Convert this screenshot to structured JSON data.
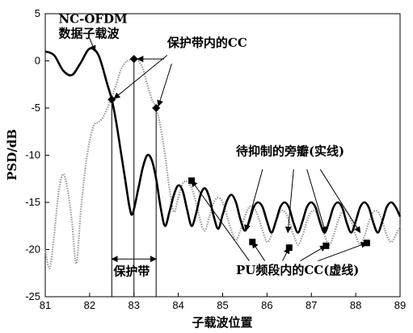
{
  "chart_data": {
    "type": "line",
    "title": "",
    "xlabel": "子载波位置",
    "ylabel": "PSD/dB",
    "xlim": [
      81,
      89
    ],
    "ylim": [
      -25,
      5
    ],
    "xticks": [
      81,
      82,
      83,
      84,
      85,
      86,
      87,
      88,
      89
    ],
    "yticks": [
      5,
      0,
      -5,
      -10,
      -15,
      -20,
      -25
    ],
    "grid": false,
    "series": [
      {
        "style": "solid-black-thick",
        "x": [
          81.0,
          81.2,
          81.4,
          81.6,
          81.8,
          82.0,
          82.2,
          82.4,
          82.5,
          82.6,
          82.7,
          82.8,
          82.9,
          82.97,
          83.1,
          83.2,
          83.3,
          83.4,
          83.5,
          83.6,
          83.7,
          83.8,
          83.9,
          84.0,
          84.1,
          84.2,
          84.3,
          84.4,
          84.5,
          84.6,
          84.7,
          84.8,
          84.9,
          85.0,
          85.1,
          85.2,
          85.3,
          85.4,
          85.5,
          85.6,
          85.7,
          85.8,
          85.9,
          86.0,
          86.1,
          86.2,
          86.3,
          86.4,
          86.5,
          86.6,
          86.7,
          86.8,
          86.9,
          87.0,
          87.1,
          87.2,
          87.3,
          87.4,
          87.5,
          87.6,
          87.7,
          87.8,
          87.9,
          88.0,
          88.1,
          88.2,
          88.3,
          88.4,
          88.5,
          88.6,
          88.7,
          88.8,
          88.9,
          89.0
        ],
        "y": [
          1.0,
          0.6,
          -1.0,
          -1.5,
          -0.2,
          1.3,
          0.6,
          -2.5,
          -4.1,
          -6.5,
          -9.5,
          -12.5,
          -15.5,
          -16.2,
          -13.5,
          -11.3,
          -10.0,
          -10.5,
          -12.5,
          -15.5,
          -17.5,
          -16.0,
          -14.2,
          -13.2,
          -13.8,
          -15.8,
          -17.5,
          -16.2,
          -14.2,
          -13.5,
          -14.5,
          -16.5,
          -17.8,
          -16.3,
          -14.8,
          -14.2,
          -15.0,
          -16.8,
          -18.0,
          -17.0,
          -15.5,
          -15.0,
          -15.5,
          -17.0,
          -18.2,
          -17.0,
          -15.5,
          -15.0,
          -15.6,
          -17.2,
          -18.2,
          -17.0,
          -15.5,
          -15.0,
          -15.6,
          -17.2,
          -18.2,
          -17.0,
          -15.5,
          -15.0,
          -15.6,
          -17.2,
          -18.2,
          -17.0,
          -15.5,
          -15.0,
          -15.6,
          -17.2,
          -18.2,
          -17.0,
          -15.5,
          -15.0,
          -15.5,
          -16.5
        ]
      },
      {
        "style": "dotted-gray",
        "x": [
          81.0,
          81.1,
          81.2,
          81.3,
          81.4,
          81.5,
          81.6,
          81.7,
          81.8,
          81.9,
          82.0,
          82.1,
          82.2,
          82.3,
          82.4,
          82.5,
          82.6,
          82.7,
          82.8,
          82.9,
          83.0,
          83.1,
          83.2,
          83.3,
          83.4,
          83.5,
          83.6,
          83.7,
          83.8,
          83.9,
          84.0,
          84.1,
          84.2,
          84.3,
          84.4,
          84.5,
          84.6,
          84.7,
          84.8,
          84.9,
          85.0,
          85.1,
          85.2,
          85.3,
          85.4,
          85.5,
          85.6,
          85.7,
          85.8,
          85.9,
          86.0,
          86.1,
          86.2,
          86.3,
          86.4,
          86.5,
          86.6,
          86.7,
          86.8,
          86.9,
          87.0,
          87.1,
          87.2,
          87.3,
          87.4,
          87.5,
          87.6,
          87.7,
          87.8,
          87.9,
          88.0,
          88.1,
          88.2,
          88.3,
          88.4,
          88.5,
          88.6,
          88.7,
          88.8,
          88.9,
          89.0
        ],
        "y": [
          -20.0,
          -22.0,
          -18.5,
          -14.0,
          -12.0,
          -13.5,
          -17.0,
          -21.5,
          -16.0,
          -11.5,
          -8.5,
          -6.8,
          -6.5,
          -6.0,
          -5.0,
          -3.8,
          -2.5,
          -1.0,
          -0.2,
          0.1,
          0.2,
          0.0,
          -0.8,
          -2.5,
          -4.0,
          -5.0,
          -7.0,
          -10.0,
          -13.5,
          -16.0,
          -14.5,
          -13.0,
          -12.8,
          -13.5,
          -15.0,
          -17.0,
          -18.0,
          -16.5,
          -15.0,
          -14.5,
          -15.0,
          -16.5,
          -18.0,
          -19.0,
          -18.0,
          -16.5,
          -15.5,
          -15.5,
          -16.5,
          -18.0,
          -19.2,
          -18.5,
          -17.0,
          -16.0,
          -16.0,
          -17.0,
          -18.5,
          -19.5,
          -18.5,
          -17.0,
          -16.0,
          -16.0,
          -17.0,
          -18.5,
          -19.5,
          -18.5,
          -17.0,
          -16.0,
          -16.0,
          -17.0,
          -18.5,
          -19.5,
          -18.5,
          -17.0,
          -16.0,
          -16.0,
          -17.0,
          -18.5,
          -19.2,
          -18.5,
          -17.5
        ]
      }
    ],
    "markers": [
      {
        "shape": "diamond",
        "x": 82.5,
        "y": -4.1
      },
      {
        "shape": "diamond",
        "x": 83.0,
        "y": 0.2
      },
      {
        "shape": "diamond",
        "x": 83.5,
        "y": -5.0
      },
      {
        "shape": "square",
        "x": 84.3,
        "y": -12.7
      },
      {
        "shape": "square",
        "x": 85.67,
        "y": -19.2
      },
      {
        "shape": "square",
        "x": 86.5,
        "y": -19.8
      },
      {
        "shape": "square",
        "x": 87.33,
        "y": -19.6
      },
      {
        "shape": "square",
        "x": 88.25,
        "y": -19.3
      }
    ],
    "vlines": [
      {
        "x": 82.5,
        "y_top": -4.1
      },
      {
        "x": 83.0,
        "y_top": 0.2
      },
      {
        "x": 83.5,
        "y_top": -5.0
      }
    ],
    "guard_band": {
      "x1": 82.5,
      "x2": 83.5,
      "y_arrow": -21.0,
      "label": "保护带",
      "label_x": 82.5,
      "label_y": -22.3
    },
    "annotations": [
      {
        "lines": [
          "NC-OFDM",
          "数据子载波"
        ],
        "text_pos": [
          81.3,
          4.0
        ],
        "arrows": [
          {
            "from": [
              82.0,
              2.4
            ],
            "to": [
              82.12,
              1.0
            ]
          }
        ]
      },
      {
        "lines": [
          "保护带内的CC"
        ],
        "text_pos": [
          83.75,
          1.5
        ],
        "arrows": [
          {
            "from": [
              83.68,
              0.2
            ],
            "to": [
              83.08,
              0.2
            ]
          },
          {
            "from": [
              83.75,
              0.6
            ],
            "to": [
              82.55,
              -4.0
            ]
          },
          {
            "from": [
              83.85,
              -0.3
            ],
            "to": [
              83.55,
              -4.8
            ]
          }
        ]
      },
      {
        "lines": [
          "待抑制的旁瓣(实线)"
        ],
        "text_pos": [
          85.3,
          -10.0
        ],
        "arrows": [
          {
            "from": [
              85.9,
              -11.5
            ],
            "to": [
              85.52,
              -18.0
            ]
          },
          {
            "from": [
              86.6,
              -11.5
            ],
            "to": [
              86.47,
              -18.2
            ]
          },
          {
            "from": [
              86.9,
              -11.5
            ],
            "to": [
              87.32,
              -18.2
            ]
          },
          {
            "from": [
              87.2,
              -11.5
            ],
            "to": [
              88.1,
              -18.2
            ]
          }
        ]
      },
      {
        "lines": [
          "PU频段内的CC(虚线)"
        ],
        "text_pos": [
          85.3,
          -22.6
        ],
        "arrows": [
          {
            "from": [
              85.6,
              -21.2
            ],
            "to": [
              84.3,
              -12.7
            ]
          },
          {
            "from": [
              85.95,
              -21.2
            ],
            "to": [
              85.67,
              -19.2
            ]
          },
          {
            "from": [
              86.35,
              -21.2
            ],
            "to": [
              86.5,
              -19.8
            ]
          },
          {
            "from": [
              86.75,
              -21.2
            ],
            "to": [
              87.33,
              -19.6
            ]
          },
          {
            "from": [
              87.15,
              -21.2
            ],
            "to": [
              88.25,
              -19.3
            ]
          }
        ]
      }
    ]
  }
}
